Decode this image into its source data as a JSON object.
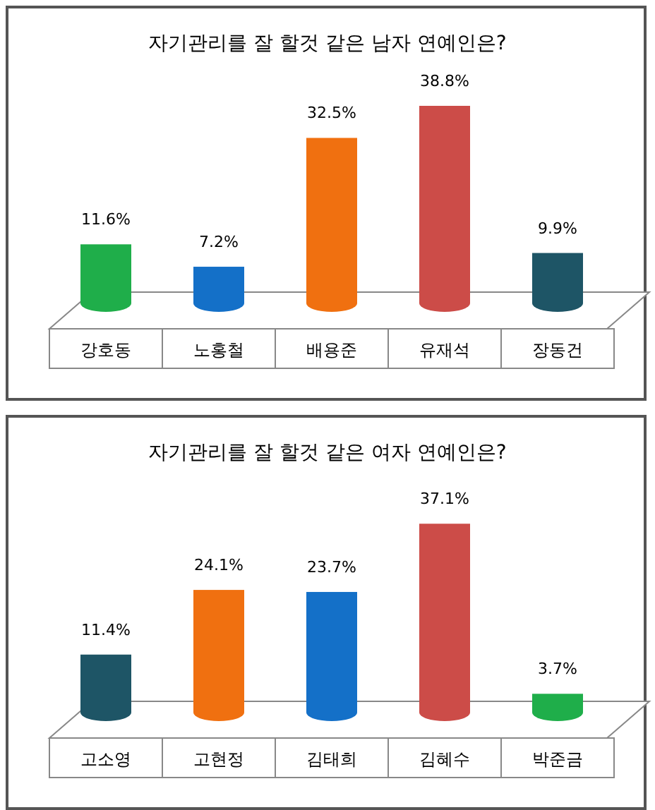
{
  "chart_data": [
    {
      "type": "bar",
      "title": "자기관리를 잘 할것 같은 남자 연예인은?",
      "categories": [
        "강호동",
        "노홍철",
        "배용준",
        "유재석",
        "장동건"
      ],
      "values": [
        11.6,
        7.2,
        32.5,
        38.8,
        9.9
      ],
      "colors": [
        "#1fae4a",
        "#1470c8",
        "#f07010",
        "#cc4c48",
        "#1e5566"
      ],
      "value_labels": [
        "11.6%",
        "7.2%",
        "32.5%",
        "38.8%",
        "9.9%"
      ]
    },
    {
      "type": "bar",
      "title": "자기관리를 잘 할것 같은 여자 연예인은?",
      "categories": [
        "고소영",
        "고현정",
        "김태희",
        "김혜수",
        "박준금"
      ],
      "values": [
        11.4,
        24.1,
        23.7,
        37.1,
        3.7
      ],
      "colors": [
        "#1e5566",
        "#f07010",
        "#1470c8",
        "#cc4c48",
        "#1fae4a"
      ],
      "value_labels": [
        "11.4%",
        "24.1%",
        "23.7%",
        "37.1%",
        "3.7%"
      ]
    }
  ]
}
